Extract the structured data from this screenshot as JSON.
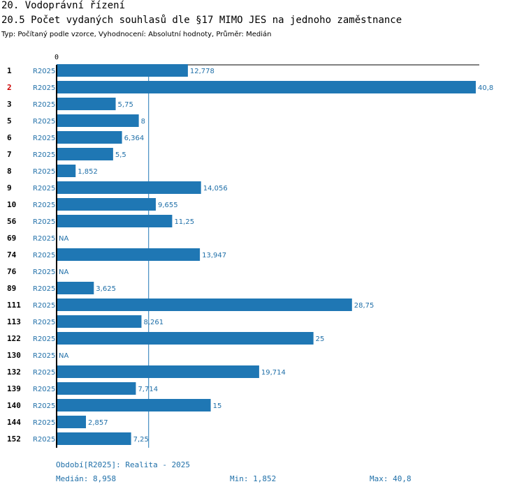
{
  "header": {
    "section": "20. Vodoprávní řízení",
    "title": "20.5 Počet vydaných souhlasů dle §17 MIMO JES na jednoho zaměstnance",
    "subtitle": "Typ: Počítaný podle vzorce, Vyhodnocení: Absolutní hodnoty, Průměr: Medián"
  },
  "colors": {
    "bar": "#1f77b4",
    "text": "#1f6fa8",
    "highlight": "#cc0000",
    "axis": "#000000"
  },
  "chart_data": {
    "type": "bar",
    "orientation": "horizontal",
    "axis_zero_label": "0",
    "xlim": [
      0,
      40.8
    ],
    "median_line": 8.958,
    "series_label": "R2025",
    "highlight_category": "2",
    "rows": [
      {
        "id": "1",
        "period": "R2025",
        "value": 12.778,
        "label": "12,778"
      },
      {
        "id": "2",
        "period": "R2025",
        "value": 40.8,
        "label": "40,8"
      },
      {
        "id": "3",
        "period": "R2025",
        "value": 5.75,
        "label": "5,75"
      },
      {
        "id": "5",
        "period": "R2025",
        "value": 8,
        "label": "8"
      },
      {
        "id": "6",
        "period": "R2025",
        "value": 6.364,
        "label": "6,364"
      },
      {
        "id": "7",
        "period": "R2025",
        "value": 5.5,
        "label": "5,5"
      },
      {
        "id": "8",
        "period": "R2025",
        "value": 1.852,
        "label": "1,852"
      },
      {
        "id": "9",
        "period": "R2025",
        "value": 14.056,
        "label": "14,056"
      },
      {
        "id": "10",
        "period": "R2025",
        "value": 9.655,
        "label": "9,655"
      },
      {
        "id": "56",
        "period": "R2025",
        "value": 11.25,
        "label": "11,25"
      },
      {
        "id": "69",
        "period": "R2025",
        "value": null,
        "label": "NA"
      },
      {
        "id": "74",
        "period": "R2025",
        "value": 13.947,
        "label": "13,947"
      },
      {
        "id": "76",
        "period": "R2025",
        "value": null,
        "label": "NA"
      },
      {
        "id": "89",
        "period": "R2025",
        "value": 3.625,
        "label": "3,625"
      },
      {
        "id": "111",
        "period": "R2025",
        "value": 28.75,
        "label": "28,75"
      },
      {
        "id": "113",
        "period": "R2025",
        "value": 8.261,
        "label": "8,261"
      },
      {
        "id": "122",
        "period": "R2025",
        "value": 25,
        "label": "25"
      },
      {
        "id": "130",
        "period": "R2025",
        "value": null,
        "label": "NA"
      },
      {
        "id": "132",
        "period": "R2025",
        "value": 19.714,
        "label": "19,714"
      },
      {
        "id": "139",
        "period": "R2025",
        "value": 7.714,
        "label": "7,714"
      },
      {
        "id": "140",
        "period": "R2025",
        "value": 15,
        "label": "15"
      },
      {
        "id": "144",
        "period": "R2025",
        "value": 2.857,
        "label": "2,857"
      },
      {
        "id": "152",
        "period": "R2025",
        "value": 7.25,
        "label": "7,25"
      }
    ]
  },
  "footer": {
    "period": "Období[R2025]: Realita - 2025",
    "median": "Medián: 8,958",
    "min": "Min: 1,852",
    "max": "Max: 40,8"
  }
}
